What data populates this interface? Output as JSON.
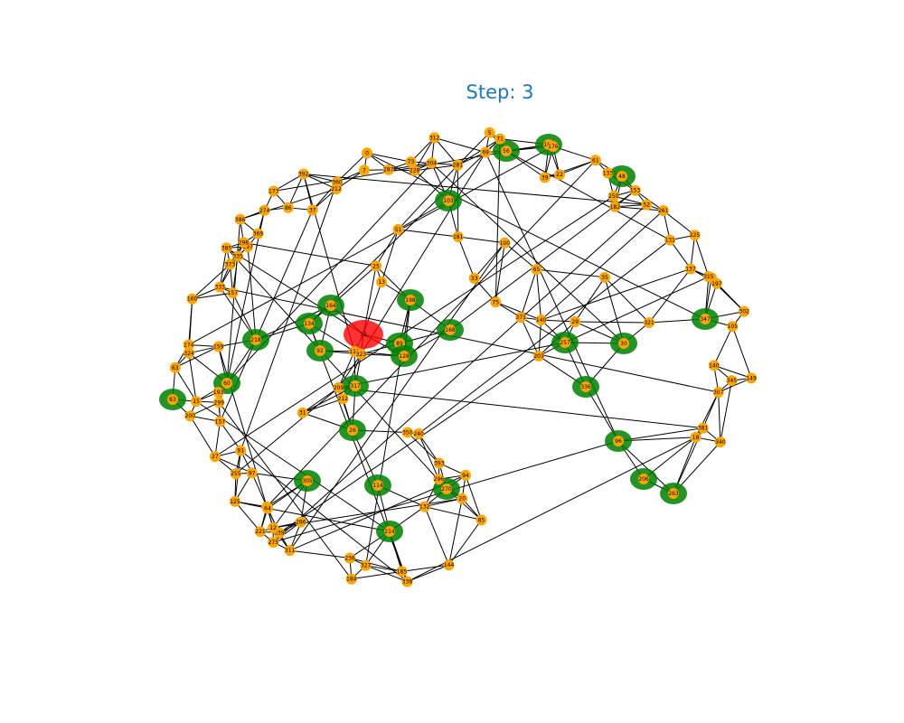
{
  "title": "Step: 3",
  "colors": {
    "title": "#1f77b4",
    "node": "#ffa500",
    "infected": "#008000",
    "source": "#ff0000",
    "edge": "#000000"
  },
  "source_node": "72",
  "infected_nodes": [
    "56",
    "102",
    "103",
    "198",
    "164",
    "134",
    "168",
    "89",
    "128",
    "218",
    "92",
    "60",
    "83",
    "317",
    "257",
    "30",
    "347",
    "336",
    "96",
    "206",
    "263",
    "114",
    "270",
    "214",
    "305",
    "26",
    "48"
  ],
  "node_labels": [
    "72",
    "56",
    "102",
    "103",
    "18",
    "381",
    "340",
    "198",
    "164",
    "134",
    "168",
    "89",
    "128",
    "218",
    "92",
    "60",
    "83",
    "317",
    "257",
    "30",
    "347",
    "336",
    "96",
    "206",
    "263",
    "114",
    "270",
    "214",
    "305",
    "26",
    "48",
    "85",
    "94",
    "20",
    "144",
    "132",
    "296",
    "338",
    "393",
    "185",
    "184",
    "327",
    "236",
    "240",
    "350",
    "311",
    "339",
    "275",
    "286",
    "12",
    "221",
    "54",
    "64",
    "255",
    "125",
    "97",
    "27",
    "31",
    "91",
    "200",
    "209",
    "212",
    "157",
    "299",
    "15",
    "193",
    "63",
    "174",
    "324",
    "111",
    "159",
    "323",
    "333",
    "160",
    "157",
    "373",
    "335",
    "297",
    "385",
    "386",
    "369",
    "298",
    "274",
    "86",
    "37",
    "173",
    "25",
    "13",
    "392",
    "360",
    "212",
    "51",
    "0",
    "7",
    "228",
    "287",
    "73",
    "181",
    "312",
    "304",
    "281",
    "5",
    "33",
    "69",
    "71",
    "176",
    "39",
    "100",
    "22",
    "75",
    "133",
    "65",
    "61",
    "250",
    "182",
    "153",
    "52",
    "371",
    "261",
    "225",
    "35",
    "140",
    "131",
    "41",
    "29",
    "137",
    "315",
    "197",
    "321",
    "302",
    "203",
    "105",
    "140",
    "149",
    "345",
    "307"
  ]
}
